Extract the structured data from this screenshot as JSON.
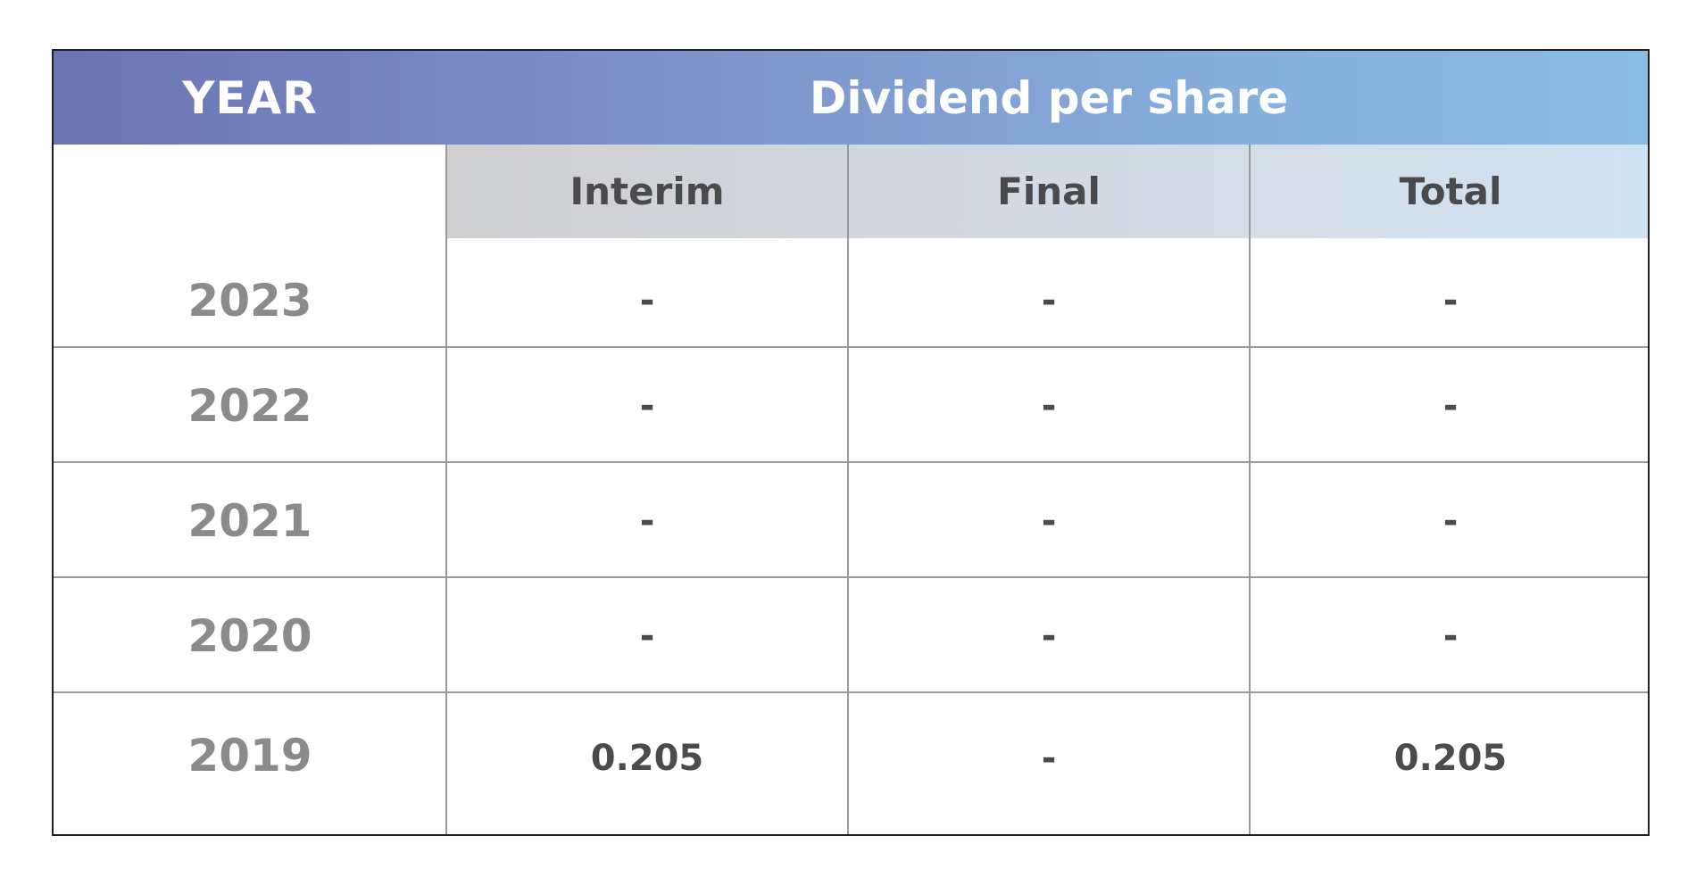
{
  "table": {
    "header": {
      "year": "YEAR",
      "dividend_per_share": "Dividend per share"
    },
    "subheaders": [
      "Interim",
      "Final",
      "Total"
    ],
    "rows": [
      {
        "year": "2023",
        "interim": "-",
        "final": "-",
        "total": "-"
      },
      {
        "year": "2022",
        "interim": "-",
        "final": "-",
        "total": "-"
      },
      {
        "year": "2021",
        "interim": "-",
        "final": "-",
        "total": "-"
      },
      {
        "year": "2020",
        "interim": "-",
        "final": "-",
        "total": "-"
      },
      {
        "year": "2019",
        "interim": "0.205",
        "final": "-",
        "total": "0.205"
      }
    ]
  },
  "colors": {
    "header_gradient_start": "#6b74b2",
    "header_gradient_end": "#8bbce5",
    "subheader_gradient_start": "#cfcfd1",
    "subheader_gradient_end": "#cfe2f4",
    "year_text": "#8b8b8b",
    "value_text": "#4b4b4d",
    "border": "#1f1f1f",
    "gridline": "#9a9a9a"
  }
}
